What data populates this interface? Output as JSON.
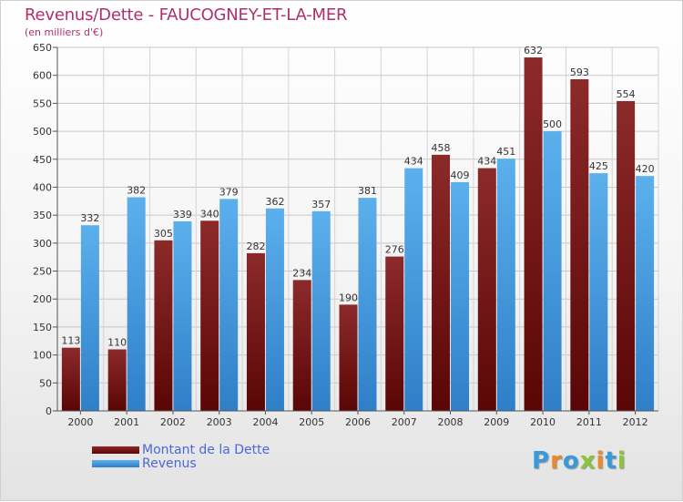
{
  "chart_data": {
    "type": "bar",
    "title": "Revenus/Dette - FAUCOGNEY-ET-LA-MER",
    "subtitle": "(en milliers d'€)",
    "xlabel": "",
    "ylabel": "",
    "ylim": [
      0,
      650
    ],
    "yticks": [
      0,
      50,
      100,
      150,
      200,
      250,
      300,
      350,
      400,
      450,
      500,
      550,
      600,
      650
    ],
    "grid": true,
    "legend_position": "bottom-left",
    "categories": [
      "2000",
      "2001",
      "2002",
      "2003",
      "2004",
      "2005",
      "2006",
      "2007",
      "2008",
      "2009",
      "2010",
      "2011",
      "2012"
    ],
    "series": [
      {
        "name": "Montant de la Dette",
        "color": "#7a1c1c",
        "values": [
          113,
          110,
          305,
          340,
          282,
          234,
          190,
          276,
          458,
          434,
          632,
          593,
          554
        ]
      },
      {
        "name": "Revenus",
        "color": "#4a9ee0",
        "values": [
          332,
          382,
          339,
          379,
          362,
          357,
          381,
          434,
          409,
          451,
          500,
          425,
          420
        ]
      }
    ]
  },
  "branding": {
    "logo_letters": [
      "P",
      "r",
      "o",
      "x",
      "i",
      "t",
      "i"
    ],
    "logo_colors": [
      "#3a9ad9",
      "#e8892a",
      "#3a9ad9",
      "#8cc43c",
      "#e8892a",
      "#3a9ad9",
      "#8cc43c"
    ]
  }
}
